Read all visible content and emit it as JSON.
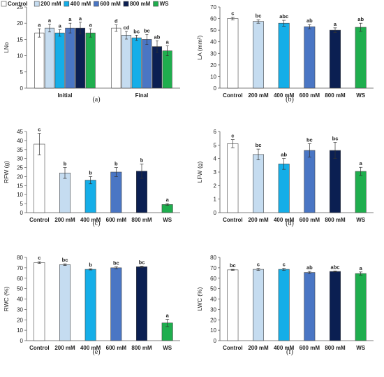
{
  "figure": {
    "colors": {
      "Control": "#ffffff",
      "200 mM": "#c5dcf0",
      "400 mM": "#15aee8",
      "600 mM": "#4a76c4",
      "800 mM": "#0b1f52",
      "WS": "#1fae4e"
    }
  },
  "chart_data": [
    {
      "panel": "(a)",
      "type": "bar",
      "ylabel": "LNo",
      "ylim": [
        0,
        25
      ],
      "yticks": [
        0,
        5,
        10,
        15,
        20,
        25
      ],
      "categories": [
        "Initial",
        "Final"
      ],
      "legend": [
        "Control",
        "200 mM",
        "400 mM",
        "600 mM",
        "800 mM",
        "WS"
      ],
      "legend_position": "top",
      "series": [
        {
          "name": "Control",
          "values": [
            17.0,
            18.5
          ],
          "errors": [
            1.3,
            1.0
          ],
          "letters": [
            "a",
            "d"
          ]
        },
        {
          "name": "200 mM",
          "values": [
            18.5,
            16.3
          ],
          "errors": [
            1.2,
            1.2
          ],
          "letters": [
            "a",
            "cd"
          ]
        },
        {
          "name": "400 mM",
          "values": [
            17.0,
            15.5
          ],
          "errors": [
            1.0,
            0.8
          ],
          "letters": [
            "a",
            "bc"
          ]
        },
        {
          "name": "600 mM",
          "values": [
            18.5,
            15.0
          ],
          "errors": [
            1.5,
            1.5
          ],
          "letters": [
            "a",
            "bc"
          ]
        },
        {
          "name": "800 mM",
          "values": [
            18.5,
            12.8
          ],
          "errors": [
            1.8,
            1.8
          ],
          "letters": [
            "a",
            "ab"
          ]
        },
        {
          "name": "WS",
          "values": [
            17.0,
            11.5
          ],
          "errors": [
            1.3,
            1.5
          ],
          "letters": [
            "a",
            "a"
          ]
        }
      ]
    },
    {
      "panel": "(b)",
      "type": "bar",
      "ylabel": "LA (mm²)",
      "ylim": [
        0,
        70
      ],
      "yticks": [
        0,
        10,
        20,
        30,
        40,
        50,
        60,
        70
      ],
      "categories": [
        "Control",
        "200 mM",
        "400 mM",
        "600 mM",
        "800 mM",
        "WS"
      ],
      "values": [
        60.0,
        57.5,
        56.0,
        53.0,
        50.0,
        52.5
      ],
      "errors": [
        1.2,
        1.5,
        2.5,
        1.8,
        2.0,
        3.5
      ],
      "letters": [
        "c",
        "bc",
        "abc",
        "ab",
        "a",
        "ab"
      ]
    },
    {
      "panel": "(c)",
      "type": "bar",
      "ylabel": "RFW (g)",
      "ylim": [
        0,
        45
      ],
      "yticks": [
        0,
        5,
        10,
        15,
        20,
        25,
        30,
        35,
        40,
        45
      ],
      "categories": [
        "Control",
        "200 mM",
        "400 mM",
        "600 mM",
        "800 mM",
        "WS"
      ],
      "values": [
        38.0,
        22.0,
        18.0,
        22.5,
        23.0,
        4.5
      ],
      "errors": [
        6.0,
        3.0,
        2.0,
        2.5,
        4.0,
        0.5
      ],
      "letters": [
        "c",
        "b",
        "b",
        "b",
        "b",
        "a"
      ]
    },
    {
      "panel": "(d)",
      "type": "bar",
      "ylabel": "LFW (g)",
      "ylim": [
        0,
        6
      ],
      "yticks": [
        0,
        1,
        2,
        3,
        4,
        5,
        6
      ],
      "categories": [
        "Control",
        "200 mM",
        "400 mM",
        "600 mM",
        "800 mM",
        "WS"
      ],
      "values": [
        5.1,
        4.3,
        3.6,
        4.6,
        4.6,
        3.05
      ],
      "errors": [
        0.3,
        0.4,
        0.4,
        0.5,
        0.6,
        0.3
      ],
      "letters": [
        "c",
        "bc",
        "ab",
        "bc",
        "bc",
        "a"
      ]
    },
    {
      "panel": "(e)",
      "type": "bar",
      "ylabel": "RWC (%)",
      "ylim": [
        0,
        80
      ],
      "yticks": [
        0,
        10,
        20,
        30,
        40,
        50,
        60,
        70,
        80
      ],
      "categories": [
        "Control",
        "200 mM",
        "400 mM",
        "600 mM",
        "800 mM",
        "WS"
      ],
      "values": [
        75.0,
        73.0,
        68.5,
        70.0,
        71.0,
        17.0
      ],
      "errors": [
        0.8,
        0.8,
        0.6,
        1.0,
        0.6,
        3.5
      ],
      "letters": [
        "c",
        "bc",
        "b",
        "bc",
        "bc",
        "a"
      ]
    },
    {
      "panel": "(f)",
      "type": "bar",
      "ylabel": "LWC (%)",
      "ylim": [
        0,
        80
      ],
      "yticks": [
        0,
        10,
        20,
        30,
        40,
        50,
        60,
        70,
        80
      ],
      "categories": [
        "Control",
        "200 mM",
        "400 mM",
        "600 mM",
        "800 mM",
        "WS"
      ],
      "values": [
        68.0,
        68.5,
        68.5,
        65.5,
        66.5,
        64.5
      ],
      "errors": [
        0.5,
        1.0,
        1.0,
        1.0,
        0.5,
        1.5
      ],
      "letters": [
        "bc",
        "c",
        "c",
        "ab",
        "abc",
        "a"
      ]
    }
  ]
}
